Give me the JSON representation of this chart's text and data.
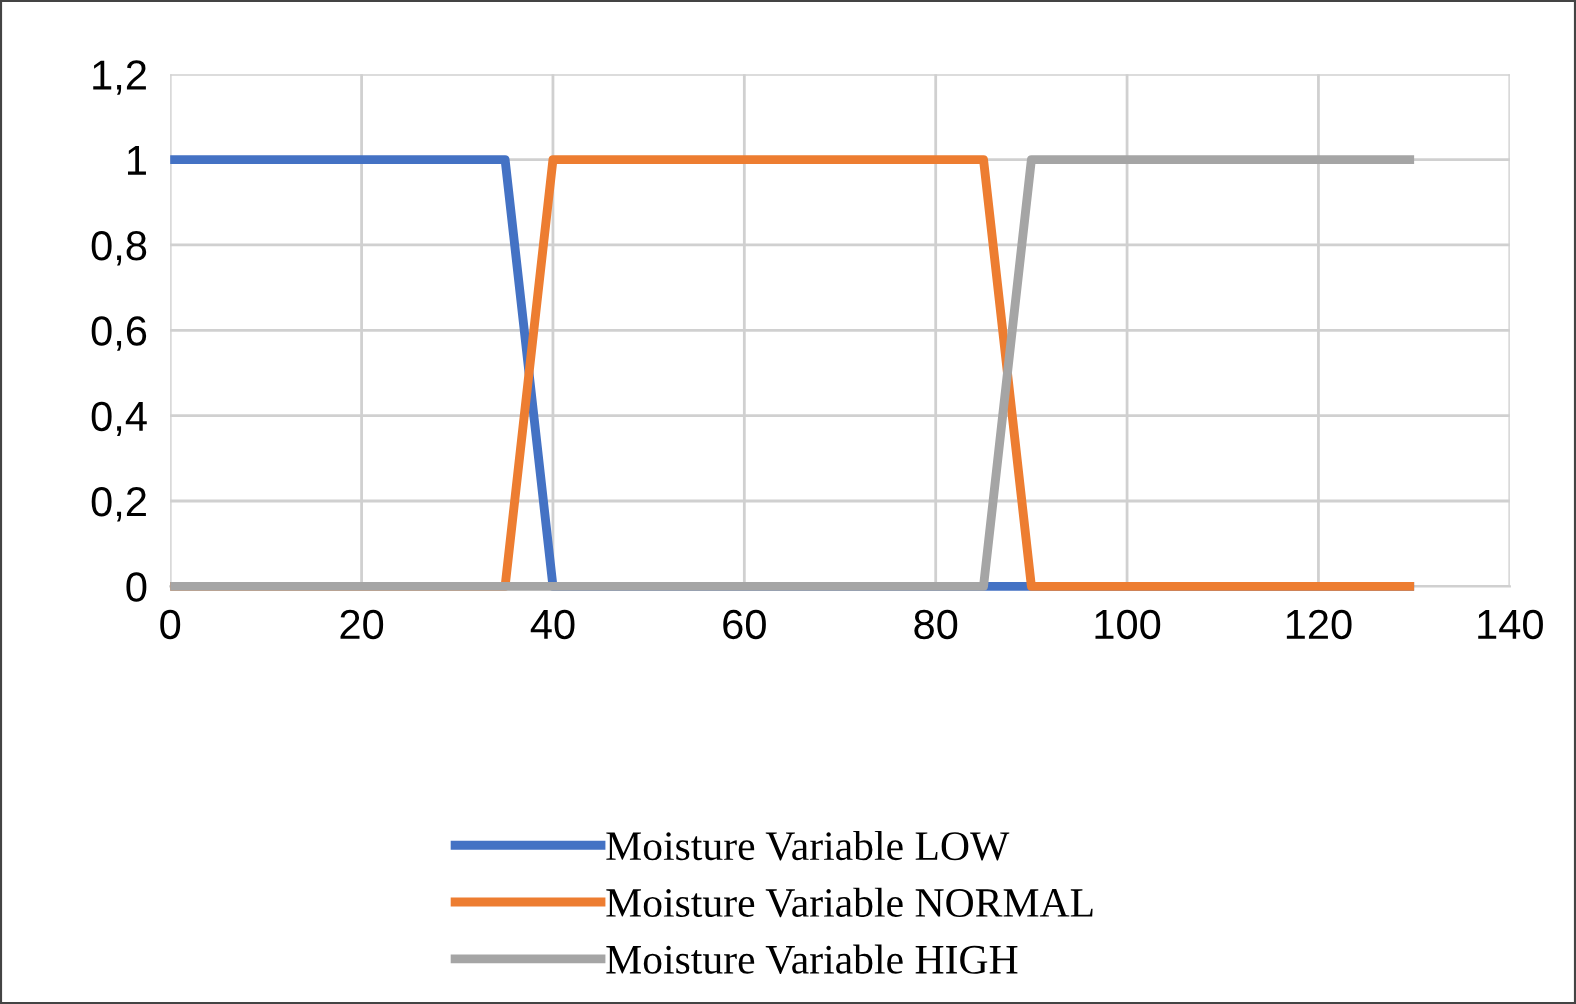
{
  "chart_data": {
    "type": "line",
    "series": [
      {
        "name": "Moisture Variable LOW",
        "color": "#4472c4",
        "x": [
          0,
          35,
          40,
          130
        ],
        "values": [
          1,
          1,
          0,
          0
        ]
      },
      {
        "name": "Moisture Variable NORMAL",
        "color": "#ed7d31",
        "x": [
          0,
          35,
          40,
          85,
          90,
          130
        ],
        "values": [
          0,
          0,
          1,
          1,
          0,
          0
        ]
      },
      {
        "name": "Moisture Variable HIGH",
        "color": "#a5a5a5",
        "x": [
          0,
          85,
          90,
          130
        ],
        "values": [
          0,
          0,
          1,
          1
        ]
      }
    ],
    "xlim": [
      0,
      140
    ],
    "xticks": [
      0,
      20,
      40,
      60,
      80,
      100,
      120,
      140
    ],
    "ylim": [
      0,
      1.2
    ],
    "yticks": [
      0,
      {
        "value": 0.2,
        "label": "0,2"
      },
      {
        "value": 0.4,
        "label": "0,4"
      },
      {
        "value": 0.6,
        "label": "0,6"
      },
      {
        "value": 0.8,
        "label": "0,8"
      },
      1,
      {
        "value": 1.2,
        "label": "1,2"
      }
    ],
    "grid": true,
    "legend": "bottom",
    "marker": "none",
    "line_style": "solid"
  }
}
